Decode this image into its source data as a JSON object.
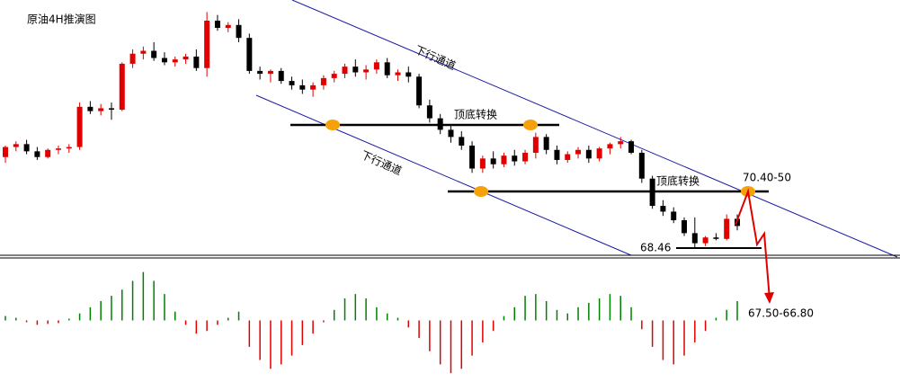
{
  "chart_data": [
    {
      "type": "candlestick",
      "title": "原油4H推演图",
      "up_color": "#e00000",
      "down_color": "#000000",
      "ylim": [
        68.18,
        77.07
      ],
      "ohlc": [
        [
          71.6,
          72.0,
          71.4,
          71.95
        ],
        [
          71.95,
          72.15,
          71.8,
          72.05
        ],
        [
          72.05,
          72.2,
          71.7,
          71.8
        ],
        [
          71.8,
          71.95,
          71.5,
          71.6
        ],
        [
          71.6,
          71.9,
          71.55,
          71.85
        ],
        [
          71.85,
          72.0,
          71.7,
          71.9
        ],
        [
          71.9,
          72.05,
          71.75,
          71.95
        ],
        [
          71.95,
          73.5,
          71.85,
          73.35
        ],
        [
          73.35,
          73.55,
          73.1,
          73.2
        ],
        [
          73.2,
          73.45,
          73.05,
          73.3
        ],
        [
          73.3,
          73.5,
          72.9,
          73.25
        ],
        [
          73.25,
          74.9,
          73.2,
          74.85
        ],
        [
          74.85,
          75.35,
          74.7,
          75.2
        ],
        [
          75.2,
          75.45,
          75.0,
          75.3
        ],
        [
          75.3,
          75.6,
          74.95,
          75.05
        ],
        [
          75.05,
          75.25,
          74.8,
          74.9
        ],
        [
          74.9,
          75.1,
          74.75,
          75.0
        ],
        [
          75.0,
          75.2,
          74.85,
          75.1
        ],
        [
          75.1,
          75.35,
          74.6,
          74.7
        ],
        [
          74.7,
          76.65,
          74.4,
          76.35
        ],
        [
          76.35,
          76.55,
          76.0,
          76.1
        ],
        [
          76.1,
          76.3,
          75.95,
          76.2
        ],
        [
          76.2,
          76.4,
          75.6,
          75.75
        ],
        [
          75.75,
          75.9,
          74.5,
          74.6
        ],
        [
          74.6,
          74.75,
          74.3,
          74.5
        ],
        [
          74.5,
          74.65,
          74.2,
          74.6
        ],
        [
          74.6,
          74.7,
          74.15,
          74.25
        ],
        [
          74.25,
          74.4,
          73.95,
          74.1
        ],
        [
          74.1,
          74.3,
          73.8,
          73.95
        ],
        [
          73.95,
          74.2,
          73.7,
          74.1
        ],
        [
          74.1,
          74.45,
          73.95,
          74.35
        ],
        [
          74.35,
          74.6,
          74.2,
          74.5
        ],
        [
          74.5,
          74.85,
          74.35,
          74.75
        ],
        [
          74.75,
          75.0,
          74.4,
          74.55
        ],
        [
          74.55,
          74.8,
          74.3,
          74.65
        ],
        [
          74.65,
          75.0,
          74.5,
          74.9
        ],
        [
          74.9,
          75.05,
          74.35,
          74.45
        ],
        [
          74.45,
          74.65,
          74.25,
          74.55
        ],
        [
          74.55,
          74.75,
          74.2,
          74.4
        ],
        [
          74.4,
          74.5,
          73.3,
          73.4
        ],
        [
          73.4,
          73.6,
          72.8,
          72.95
        ],
        [
          72.95,
          73.1,
          72.4,
          72.55
        ],
        [
          72.55,
          72.75,
          72.1,
          72.3
        ],
        [
          72.3,
          72.5,
          71.85,
          72.0
        ],
        [
          72.0,
          72.15,
          71.05,
          71.2
        ],
        [
          71.2,
          71.65,
          71.05,
          71.55
        ],
        [
          71.55,
          71.8,
          71.2,
          71.35
        ],
        [
          71.35,
          71.75,
          71.25,
          71.65
        ],
        [
          71.65,
          71.85,
          71.3,
          71.45
        ],
        [
          71.45,
          71.85,
          71.35,
          71.75
        ],
        [
          71.75,
          72.45,
          71.55,
          72.3
        ],
        [
          72.3,
          72.4,
          71.7,
          71.85
        ],
        [
          71.85,
          72.0,
          71.35,
          71.5
        ],
        [
          71.5,
          71.8,
          71.4,
          71.7
        ],
        [
          71.7,
          71.95,
          71.55,
          71.85
        ],
        [
          71.85,
          72.0,
          71.4,
          71.55
        ],
        [
          71.55,
          71.95,
          71.45,
          71.9
        ],
        [
          71.9,
          72.1,
          71.7,
          72.05
        ],
        [
          72.05,
          72.3,
          71.9,
          72.15
        ],
        [
          72.15,
          72.2,
          71.7,
          71.75
        ],
        [
          71.75,
          71.85,
          70.7,
          70.85
        ],
        [
          70.85,
          70.95,
          69.8,
          69.9
        ],
        [
          69.9,
          70.1,
          69.55,
          69.7
        ],
        [
          69.7,
          69.85,
          69.3,
          69.4
        ],
        [
          69.4,
          69.5,
          68.85,
          68.95
        ],
        [
          68.95,
          69.5,
          68.45,
          68.6
        ],
        [
          68.6,
          68.85,
          68.5,
          68.8
        ],
        [
          68.8,
          68.95,
          68.7,
          68.75
        ],
        [
          68.75,
          69.6,
          68.7,
          69.45
        ],
        [
          69.45,
          69.6,
          69.05,
          69.2
        ]
      ],
      "annotations": {
        "channel_upper": "下行通道",
        "channel_lower": "下行通道",
        "flip_1": "顶底转换",
        "flip_2": "顶底转换",
        "resistance": "70.40-50",
        "low": "68.46",
        "target": "67.50-66.80"
      }
    },
    {
      "type": "bar",
      "positive_color": "#008000",
      "negative_color": "#e00000",
      "ylim": [
        -0.7,
        0.7
      ],
      "values": [
        0.05,
        0.03,
        -0.02,
        -0.05,
        -0.04,
        -0.03,
        0.02,
        0.08,
        0.15,
        0.22,
        0.28,
        0.35,
        0.45,
        0.55,
        0.45,
        0.3,
        0.1,
        -0.05,
        -0.15,
        -0.12,
        -0.05,
        0.03,
        0.1,
        -0.3,
        -0.45,
        -0.55,
        -0.5,
        -0.4,
        -0.28,
        -0.15,
        -0.02,
        0.12,
        0.25,
        0.3,
        0.25,
        0.15,
        0.08,
        0.03,
        -0.08,
        -0.2,
        -0.35,
        -0.5,
        -0.6,
        -0.55,
        -0.4,
        -0.25,
        -0.12,
        0.05,
        0.15,
        0.28,
        0.3,
        0.22,
        0.12,
        0.08,
        0.15,
        0.2,
        0.25,
        0.3,
        0.28,
        0.15,
        -0.1,
        -0.3,
        -0.45,
        -0.5,
        -0.4,
        -0.25,
        -0.12,
        0.03,
        0.12,
        0.22
      ]
    }
  ]
}
